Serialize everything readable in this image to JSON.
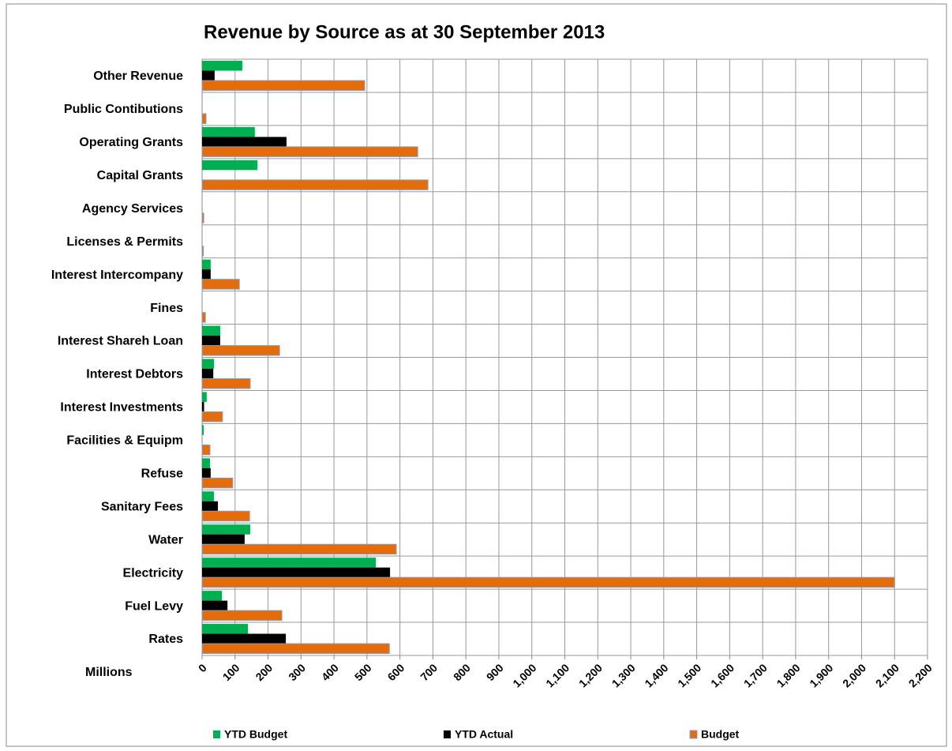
{
  "chart_data": {
    "type": "bar",
    "orientation": "horizontal",
    "title": "Revenue by Source as at 30 September 2013",
    "x_label": "Millions",
    "categories": [
      "Other Revenue",
      "Public Contibutions",
      "Operating Grants",
      "Capital Grants",
      "Agency Services",
      "Licenses & Permits",
      "Interest Intercompany",
      "Fines",
      "Interest Shareh Loan",
      "Interest Debtors",
      "Interest Investments",
      "Facilities & Equipm",
      "Refuse",
      "Sanitary Fees",
      "Water",
      "Electricity",
      "Fuel Levy",
      "Rates"
    ],
    "series": [
      {
        "name": "YTD Budget",
        "color": "#00b050",
        "values": [
          122,
          0,
          160,
          168,
          0,
          0,
          26,
          0,
          55,
          36,
          14,
          5,
          24,
          36,
          146,
          527,
          60,
          139
        ]
      },
      {
        "name": "YTD Actual",
        "color": "#000000",
        "values": [
          38,
          0,
          256,
          0,
          0,
          0,
          26,
          0,
          55,
          34,
          6,
          0,
          26,
          48,
          129,
          570,
          77,
          254
        ]
      },
      {
        "name": "Budget",
        "color": "#e46c0a",
        "values": [
          493,
          12,
          654,
          685,
          5,
          4,
          113,
          10,
          235,
          146,
          62,
          24,
          93,
          144,
          589,
          2100,
          242,
          568
        ]
      }
    ],
    "xlim": [
      0,
      2200
    ],
    "xticks": [
      0,
      100,
      200,
      300,
      400,
      500,
      600,
      700,
      800,
      900,
      {
        "value": 1000,
        "label": "1,000"
      },
      {
        "value": 1100,
        "label": "1,100"
      },
      {
        "value": 1200,
        "label": "1,200"
      },
      {
        "value": 1300,
        "label": "1,300"
      },
      {
        "value": 1400,
        "label": "1,400"
      },
      {
        "value": 1500,
        "label": "1,500"
      },
      {
        "value": 1600,
        "label": "1,600"
      },
      {
        "value": 1700,
        "label": "1,700"
      },
      {
        "value": 1800,
        "label": "1,800"
      },
      {
        "value": 1900,
        "label": "1,900"
      },
      {
        "value": 2000,
        "label": "2,000"
      },
      {
        "value": 2100,
        "label": "2,100"
      },
      {
        "value": 2200,
        "label": "2,200"
      }
    ],
    "grid": true,
    "legend": "bottom"
  }
}
